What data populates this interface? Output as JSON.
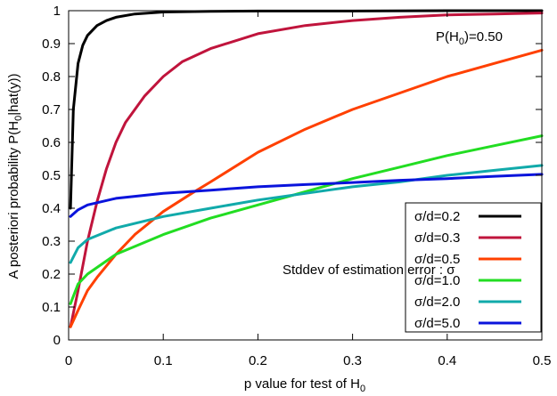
{
  "chart_data": {
    "type": "line",
    "title": "",
    "xlabel": "p value for test of H",
    "xlabel_sub": "0",
    "ylabel": "A posteriori probability P(H",
    "ylabel_sub": "0",
    "ylabel_suffix": "|hat(y))",
    "xlim": [
      0,
      0.5
    ],
    "ylim": [
      0,
      1
    ],
    "xticks": [
      0,
      0.1,
      0.2,
      0.3,
      0.4,
      0.5
    ],
    "xtick_labels": [
      "0",
      "0.1",
      "0.2",
      "0.3",
      "0.4",
      "0.5"
    ],
    "yticks": [
      0,
      0.1,
      0.2,
      0.3,
      0.4,
      0.5,
      0.6,
      0.7,
      0.8,
      0.9,
      1
    ],
    "ytick_labels": [
      "0",
      "0.1",
      "0.2",
      "0.3",
      "0.4",
      "0.5",
      "0.6",
      "0.7",
      "0.8",
      "0.9",
      "1"
    ],
    "grid": false,
    "legend_position": "bottom-right",
    "annotation_prior": {
      "prefix": "P(H",
      "sub": "0",
      "suffix": ")=0.50"
    },
    "annotation_stddev": "Stddev  of estimation error : σ",
    "series": [
      {
        "name": "σ/d=0.2",
        "color": "#000000",
        "x": [
          0.002,
          0.005,
          0.01,
          0.015,
          0.02,
          0.03,
          0.04,
          0.05,
          0.07,
          0.1,
          0.15,
          0.2,
          0.3,
          0.4,
          0.5
        ],
        "y": [
          0.4,
          0.7,
          0.84,
          0.895,
          0.925,
          0.955,
          0.97,
          0.98,
          0.99,
          0.996,
          0.998,
          0.999,
          0.999,
          1.0,
          1.0
        ]
      },
      {
        "name": "σ/d=0.3",
        "color": "#c0143c",
        "x": [
          0.002,
          0.01,
          0.02,
          0.03,
          0.04,
          0.05,
          0.06,
          0.08,
          0.1,
          0.12,
          0.15,
          0.2,
          0.25,
          0.3,
          0.35,
          0.4,
          0.45,
          0.5
        ],
        "y": [
          0.04,
          0.15,
          0.3,
          0.42,
          0.52,
          0.6,
          0.66,
          0.74,
          0.8,
          0.845,
          0.885,
          0.93,
          0.955,
          0.97,
          0.98,
          0.987,
          0.99,
          0.993
        ]
      },
      {
        "name": "σ/d=0.5",
        "color": "#ff4000",
        "x": [
          0.002,
          0.01,
          0.02,
          0.03,
          0.05,
          0.07,
          0.1,
          0.13,
          0.15,
          0.2,
          0.25,
          0.3,
          0.35,
          0.4,
          0.45,
          0.5
        ],
        "y": [
          0.04,
          0.09,
          0.15,
          0.19,
          0.26,
          0.32,
          0.39,
          0.445,
          0.48,
          0.57,
          0.64,
          0.7,
          0.75,
          0.8,
          0.84,
          0.88
        ]
      },
      {
        "name": "σ/d=1.0",
        "color": "#22dd22",
        "x": [
          0.002,
          0.01,
          0.02,
          0.05,
          0.1,
          0.15,
          0.2,
          0.25,
          0.3,
          0.35,
          0.4,
          0.45,
          0.5
        ],
        "y": [
          0.11,
          0.17,
          0.2,
          0.26,
          0.32,
          0.37,
          0.41,
          0.45,
          0.49,
          0.525,
          0.56,
          0.59,
          0.62
        ]
      },
      {
        "name": "σ/d=2.0",
        "color": "#11aaaa",
        "x": [
          0.002,
          0.01,
          0.02,
          0.05,
          0.1,
          0.15,
          0.2,
          0.25,
          0.3,
          0.35,
          0.4,
          0.45,
          0.5
        ],
        "y": [
          0.235,
          0.28,
          0.305,
          0.34,
          0.375,
          0.4,
          0.425,
          0.445,
          0.465,
          0.48,
          0.5,
          0.515,
          0.53
        ]
      },
      {
        "name": "σ/d=5.0",
        "color": "#0a14dc",
        "x": [
          0.002,
          0.01,
          0.02,
          0.05,
          0.1,
          0.15,
          0.2,
          0.25,
          0.3,
          0.35,
          0.4,
          0.45,
          0.5
        ],
        "y": [
          0.375,
          0.395,
          0.41,
          0.43,
          0.445,
          0.455,
          0.465,
          0.472,
          0.478,
          0.485,
          0.49,
          0.497,
          0.503
        ]
      }
    ]
  }
}
